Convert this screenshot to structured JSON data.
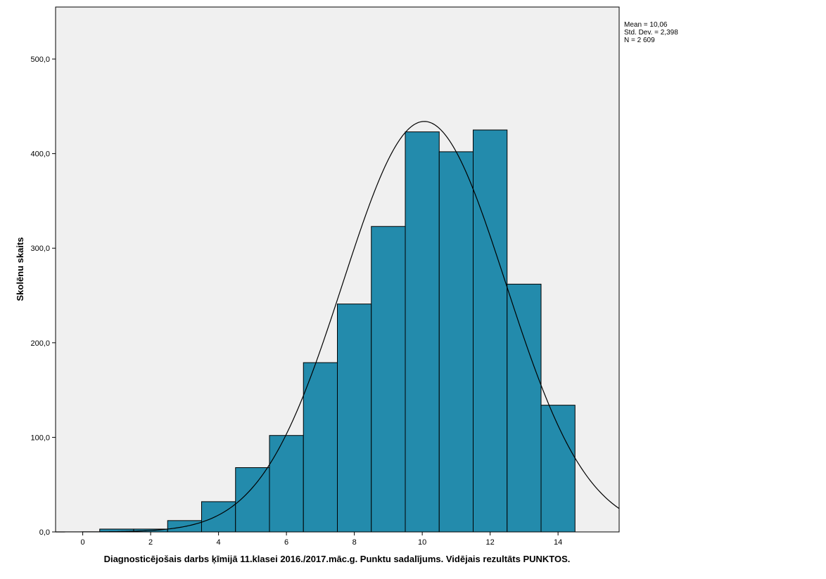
{
  "chart_data": {
    "type": "bar",
    "subtype": "histogram",
    "xlabel": "Diagnosticējošais darbs ķīmijā 11.klasei 2016./2017.māc.g. Punktu sadalījums. Vidējais rezultāts PUNKTOS.",
    "ylabel": "Skolēnu skaits",
    "xlim": [
      -0.8,
      15.8
    ],
    "ylim": [
      0,
      555
    ],
    "x_ticks": [
      0,
      2,
      4,
      6,
      8,
      10,
      12,
      14
    ],
    "x_tick_labels": [
      "0",
      "2",
      "4",
      "6",
      "8",
      "10",
      "12",
      "14"
    ],
    "y_ticks": [
      0,
      100,
      200,
      300,
      400,
      500
    ],
    "y_tick_labels": [
      "0,0",
      "100,0",
      "200,0",
      "300,0",
      "400,0",
      "500,0"
    ],
    "bins": [
      1,
      2,
      3,
      4,
      5,
      6,
      7,
      8,
      9,
      10,
      11,
      12,
      13,
      14
    ],
    "bin_width": 1,
    "values": [
      3,
      3,
      12,
      32,
      68,
      102,
      179,
      241,
      323,
      423,
      402,
      425,
      262,
      134
    ],
    "bar_color": "#238bac",
    "plot_background": "#f0f0f0",
    "normal_curve": {
      "mean": 10.06,
      "sd": 2.398,
      "n": 2609
    },
    "stats": {
      "mean": "Mean = 10,06",
      "sd": "Std. Dev. = 2,398",
      "n": "N = 2 609"
    },
    "legend_position": "top-right",
    "grid": false
  }
}
